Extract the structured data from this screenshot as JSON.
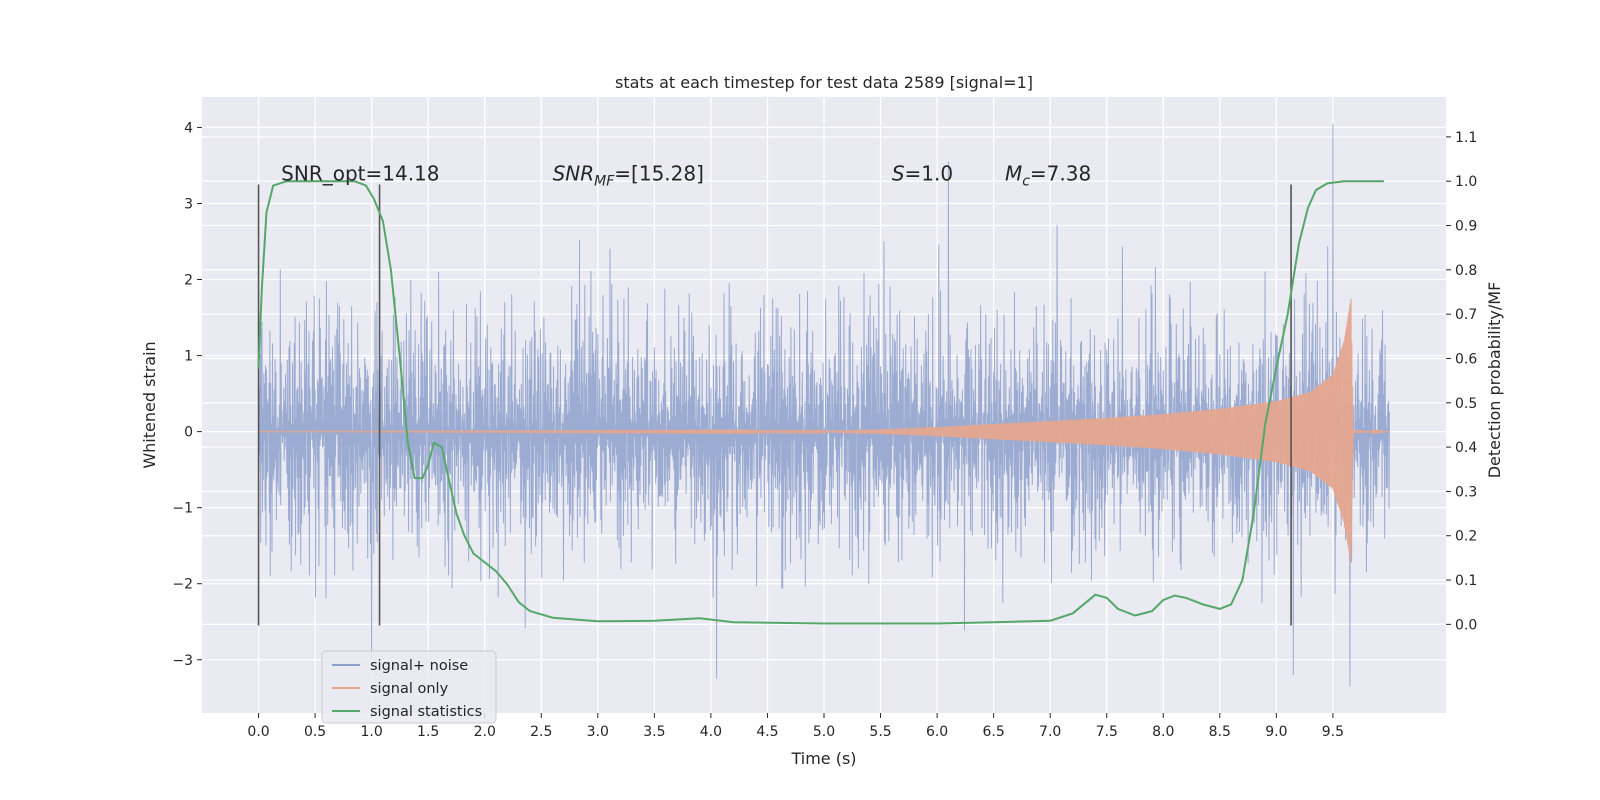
{
  "chart_data": {
    "type": "line",
    "title": "stats at each timestep for test data 2589 [signal=1]",
    "xlabel": "Time (s)",
    "ylabel": "Whitened strain",
    "ylabel_right": "Detection probability/MF",
    "xlim": [
      -0.5,
      10.5
    ],
    "ylim": [
      -3.7,
      4.4
    ],
    "ylim_right": [
      -0.2,
      1.19
    ],
    "x_ticks": [
      0.0,
      0.5,
      1.0,
      1.5,
      2.0,
      2.5,
      3.0,
      3.5,
      4.0,
      4.5,
      5.0,
      5.5,
      6.0,
      6.5,
      7.0,
      7.5,
      8.0,
      8.5,
      9.0,
      9.5
    ],
    "x_tick_labels": [
      "0.0",
      "0.5",
      "1.0",
      "1.5",
      "2.0",
      "2.5",
      "3.0",
      "3.5",
      "4.0",
      "4.5",
      "5.0",
      "5.5",
      "6.0",
      "6.5",
      "7.0",
      "7.5",
      "8.0",
      "8.5",
      "9.0",
      "9.5"
    ],
    "y_ticks": [
      -3,
      -2,
      -1,
      0,
      1,
      2,
      3,
      4
    ],
    "y_tick_labels": [
      "−3",
      "−2",
      "−1",
      "0",
      "1",
      "2",
      "3",
      "4"
    ],
    "y_ticks_right": [
      0.0,
      0.1,
      0.2,
      0.3,
      0.4,
      0.5,
      0.6,
      0.7,
      0.8,
      0.9,
      1.0,
      1.1
    ],
    "y_tick_labels_right": [
      "0.0",
      "0.1",
      "0.2",
      "0.3",
      "0.4",
      "0.5",
      "0.6",
      "0.7",
      "0.8",
      "0.9",
      "1.0",
      "1.1"
    ],
    "grid": true,
    "legend_position": "lower-left",
    "vertical_markers_x": [
      0.0,
      1.07,
      9.13
    ],
    "vertical_markers_ylim": [
      -2.55,
      3.25
    ],
    "annotations": [
      {
        "text": "SNR_opt=14.18",
        "x": 0.2,
        "y": 3.3
      },
      {
        "text": "SNR",
        "sub": "MF",
        "after": "=[15.28]",
        "x": 2.6,
        "y": 3.3,
        "italic": true
      },
      {
        "text": "S",
        "after": "=1.0",
        "x": 5.6,
        "y": 3.3,
        "italic": true
      },
      {
        "text": "M",
        "sub": "c",
        "after": "=7.38",
        "x": 6.6,
        "y": 3.3,
        "italic": true
      }
    ],
    "series": [
      {
        "name": "signal+ noise",
        "color": "#8da0cb",
        "axis": "left",
        "description_range": [
          0.0,
          10.0
        ],
        "typical_amplitude": 1.45,
        "extremes": [
          {
            "x": 1.0,
            "y": -3.0
          },
          {
            "x": 4.05,
            "y": -3.25
          },
          {
            "x": 6.1,
            "y": 3.55
          },
          {
            "x": 9.15,
            "y": -3.2
          },
          {
            "x": 9.5,
            "y": 4.05
          },
          {
            "x": 9.65,
            "y": -3.35
          }
        ]
      },
      {
        "name": "signal only",
        "color": "#e5a78f",
        "axis": "left",
        "envelope": [
          {
            "x": 0.0,
            "y": 0.0
          },
          {
            "x": 5.0,
            "y": 0.01
          },
          {
            "x": 5.5,
            "y": 0.03
          },
          {
            "x": 6.0,
            "y": 0.06
          },
          {
            "x": 6.5,
            "y": 0.1
          },
          {
            "x": 7.0,
            "y": 0.14
          },
          {
            "x": 7.5,
            "y": 0.18
          },
          {
            "x": 8.0,
            "y": 0.23
          },
          {
            "x": 8.5,
            "y": 0.3
          },
          {
            "x": 9.0,
            "y": 0.4
          },
          {
            "x": 9.3,
            "y": 0.52
          },
          {
            "x": 9.5,
            "y": 0.75
          },
          {
            "x": 9.6,
            "y": 1.2
          },
          {
            "x": 9.66,
            "y": 1.75
          },
          {
            "x": 9.68,
            "y": 0.02
          },
          {
            "x": 10.0,
            "y": 0.0
          }
        ]
      },
      {
        "name": "signal statistics",
        "color": "#55a868",
        "axis": "right",
        "points": [
          {
            "x": 0.0,
            "y": 0.58
          },
          {
            "x": 0.03,
            "y": 0.76
          },
          {
            "x": 0.07,
            "y": 0.93
          },
          {
            "x": 0.13,
            "y": 0.99
          },
          {
            "x": 0.25,
            "y": 1.0
          },
          {
            "x": 0.6,
            "y": 1.0
          },
          {
            "x": 0.85,
            "y": 1.0
          },
          {
            "x": 0.95,
            "y": 0.99
          },
          {
            "x": 1.02,
            "y": 0.96
          },
          {
            "x": 1.1,
            "y": 0.91
          },
          {
            "x": 1.17,
            "y": 0.8
          },
          {
            "x": 1.25,
            "y": 0.6
          },
          {
            "x": 1.32,
            "y": 0.41
          },
          {
            "x": 1.38,
            "y": 0.33
          },
          {
            "x": 1.45,
            "y": 0.33
          },
          {
            "x": 1.5,
            "y": 0.36
          },
          {
            "x": 1.55,
            "y": 0.41
          },
          {
            "x": 1.62,
            "y": 0.4
          },
          {
            "x": 1.68,
            "y": 0.33
          },
          {
            "x": 1.75,
            "y": 0.25
          },
          {
            "x": 1.82,
            "y": 0.2
          },
          {
            "x": 1.9,
            "y": 0.16
          },
          {
            "x": 2.0,
            "y": 0.14
          },
          {
            "x": 2.1,
            "y": 0.12
          },
          {
            "x": 2.2,
            "y": 0.09
          },
          {
            "x": 2.3,
            "y": 0.05
          },
          {
            "x": 2.4,
            "y": 0.03
          },
          {
            "x": 2.6,
            "y": 0.015
          },
          {
            "x": 3.0,
            "y": 0.007
          },
          {
            "x": 3.5,
            "y": 0.008
          },
          {
            "x": 3.9,
            "y": 0.014
          },
          {
            "x": 4.2,
            "y": 0.005
          },
          {
            "x": 5.0,
            "y": 0.002
          },
          {
            "x": 6.0,
            "y": 0.002
          },
          {
            "x": 6.5,
            "y": 0.005
          },
          {
            "x": 7.0,
            "y": 0.008
          },
          {
            "x": 7.2,
            "y": 0.025
          },
          {
            "x": 7.4,
            "y": 0.067
          },
          {
            "x": 7.5,
            "y": 0.06
          },
          {
            "x": 7.6,
            "y": 0.035
          },
          {
            "x": 7.75,
            "y": 0.02
          },
          {
            "x": 7.9,
            "y": 0.03
          },
          {
            "x": 8.0,
            "y": 0.055
          },
          {
            "x": 8.1,
            "y": 0.065
          },
          {
            "x": 8.2,
            "y": 0.06
          },
          {
            "x": 8.35,
            "y": 0.045
          },
          {
            "x": 8.5,
            "y": 0.035
          },
          {
            "x": 8.6,
            "y": 0.045
          },
          {
            "x": 8.7,
            "y": 0.1
          },
          {
            "x": 8.8,
            "y": 0.25
          },
          {
            "x": 8.9,
            "y": 0.45
          },
          {
            "x": 9.0,
            "y": 0.58
          },
          {
            "x": 9.1,
            "y": 0.7
          },
          {
            "x": 9.2,
            "y": 0.86
          },
          {
            "x": 9.28,
            "y": 0.94
          },
          {
            "x": 9.35,
            "y": 0.98
          },
          {
            "x": 9.45,
            "y": 0.995
          },
          {
            "x": 9.6,
            "y": 1.0
          },
          {
            "x": 9.95,
            "y": 1.0
          }
        ]
      }
    ],
    "colors": {
      "plot_background": "#eaeaf2",
      "grid": "#ffffff",
      "vertical_markers": "#555555"
    }
  }
}
